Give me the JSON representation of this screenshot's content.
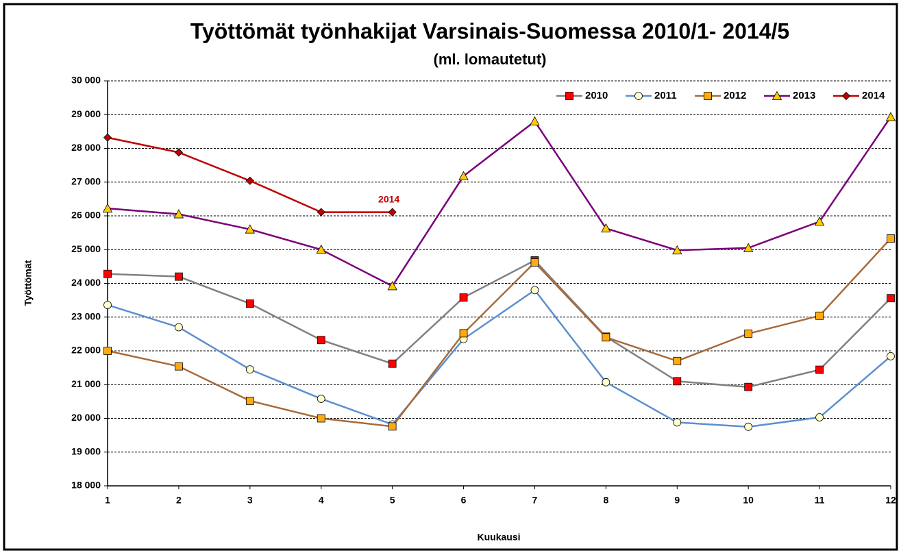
{
  "chart_data": {
    "type": "line",
    "title": "Työttömät työnhakijat Varsinais-Suomessa  2010/1- 2014/5",
    "subtitle": "(ml. lomautetut)",
    "x_label": "Kuukausi",
    "y_label": "Työttömät",
    "annotation": "2014",
    "x": [
      1,
      2,
      3,
      4,
      5,
      6,
      7,
      8,
      9,
      10,
      11,
      12
    ],
    "xlim": [
      1,
      12
    ],
    "xticks": [
      1,
      2,
      3,
      4,
      5,
      6,
      7,
      8,
      9,
      10,
      11,
      12
    ],
    "ylim": [
      18000,
      30000
    ],
    "yticks": [
      {
        "value": 18000,
        "label": "18 000"
      },
      {
        "value": 19000,
        "label": "19 000"
      },
      {
        "value": 20000,
        "label": "20 000"
      },
      {
        "value": 21000,
        "label": "21 000"
      },
      {
        "value": 22000,
        "label": "22 000"
      },
      {
        "value": 23000,
        "label": "23 000"
      },
      {
        "value": 24000,
        "label": "24 000"
      },
      {
        "value": 25000,
        "label": "25 000"
      },
      {
        "value": 26000,
        "label": "26 000"
      },
      {
        "value": 27000,
        "label": "27 000"
      },
      {
        "value": 28000,
        "label": "28 000"
      },
      {
        "value": 29000,
        "label": "29 000"
      },
      {
        "value": 30000,
        "label": "30 000"
      }
    ],
    "grid": true,
    "legend": "top-right",
    "series": [
      {
        "name": "2010",
        "color": "#808080",
        "marker": "square",
        "marker_color": "#ff0000",
        "values": [
          24280,
          24200,
          23400,
          22320,
          21620,
          23580,
          24680,
          22420,
          21100,
          20930,
          21440,
          23560
        ]
      },
      {
        "name": "2011",
        "color": "#5b8fd0",
        "marker": "circle",
        "marker_color": "#ffffcc",
        "values": [
          23360,
          22700,
          21450,
          20580,
          19820,
          22350,
          23800,
          21070,
          19880,
          19750,
          20030,
          21840
        ]
      },
      {
        "name": "2012",
        "color": "#a86a3a",
        "marker": "square",
        "marker_color": "#ffaa11",
        "values": [
          22000,
          21540,
          20520,
          20000,
          19760,
          22520,
          24620,
          22400,
          21700,
          22510,
          23040,
          25330
        ]
      },
      {
        "name": "2013",
        "color": "#7a007a",
        "marker": "triangle",
        "marker_color": "#ffcc00",
        "values": [
          26220,
          26050,
          25600,
          25000,
          23920,
          27180,
          28800,
          25630,
          24980,
          25050,
          25830,
          28930
        ]
      },
      {
        "name": "2014",
        "color": "#c00000",
        "marker": "diamond",
        "marker_color": "#c00000",
        "values": [
          28320,
          27880,
          27040,
          26110,
          26110,
          null,
          null,
          null,
          null,
          null,
          null,
          null
        ]
      }
    ]
  }
}
